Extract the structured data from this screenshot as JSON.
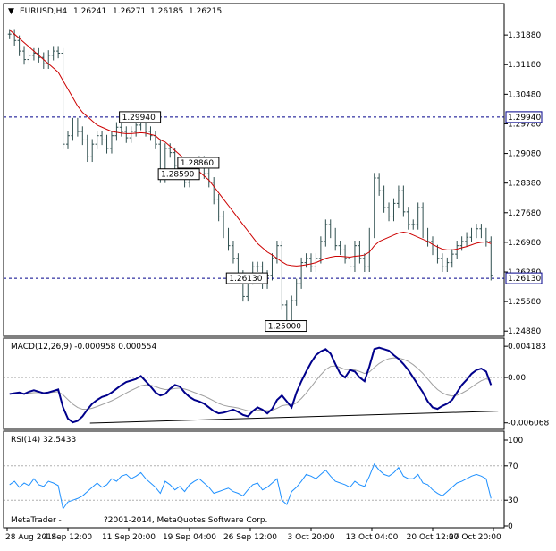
{
  "header": {
    "symbol": "EURUSD,H4",
    "open": "1.26241",
    "high": "1.26271",
    "low": "1.26185",
    "close": "1.26215"
  },
  "chart_data": [
    {
      "type": "candlestick",
      "symbol": "EURUSD",
      "timeframe": "H4",
      "ylim": [
        1.248,
        1.322
      ],
      "y_ticks": [
        "1.31880",
        "1.31180",
        "1.30480",
        "1.29780",
        "1.29080",
        "1.28380",
        "1.27680",
        "1.26980",
        "1.26280",
        "1.25580",
        "1.24880"
      ],
      "x_ticks": [
        "28 Aug 2014",
        "4 Sep 12:00",
        "11 Sep 20:00",
        "19 Sep 04:00",
        "26 Sep 12:00",
        "3 Oct 20:00",
        "13 Oct 04:00",
        "20 Oct 12:00",
        "27 Oct 20:00"
      ],
      "annotations": [
        {
          "label": "1.29940",
          "value": 1.2994
        },
        {
          "label": "1.28590",
          "value": 1.2859
        },
        {
          "label": "1.28860",
          "value": 1.2886
        },
        {
          "label": "1.25000",
          "value": 1.25
        },
        {
          "label": "1.26130",
          "value": 1.2613
        }
      ],
      "hlines": [
        {
          "value": 1.2994,
          "label": "1.29940",
          "style": "dashed",
          "color": "#00008b"
        },
        {
          "value": 1.2613,
          "label": "1.26130",
          "style": "dashed",
          "color": "#00008b"
        }
      ],
      "current_price": "1.26215",
      "close": [
        1.319,
        1.3175,
        1.315,
        1.313,
        1.314,
        1.3145,
        1.3135,
        1.312,
        1.314,
        1.315,
        1.3145,
        1.293,
        1.295,
        1.298,
        1.296,
        1.294,
        1.29,
        1.293,
        1.295,
        1.294,
        1.292,
        1.295,
        1.297,
        1.296,
        1.2945,
        1.296,
        1.2975,
        1.2985,
        1.296,
        1.295,
        1.293,
        1.285,
        1.292,
        1.291,
        1.288,
        1.286,
        1.284,
        1.286,
        1.288,
        1.289,
        1.286,
        1.284,
        1.28,
        1.276,
        1.272,
        1.269,
        1.266,
        1.262,
        1.257,
        1.261,
        1.264,
        1.264,
        1.26,
        1.262,
        1.266,
        1.269,
        1.255,
        1.251,
        1.256,
        1.26,
        1.265,
        1.266,
        1.264,
        1.266,
        1.27,
        1.274,
        1.272,
        1.269,
        1.268,
        1.266,
        1.264,
        1.269,
        1.266,
        1.264,
        1.272,
        1.285,
        1.282,
        1.278,
        1.276,
        1.279,
        1.282,
        1.277,
        1.274,
        1.274,
        1.278,
        1.272,
        1.27,
        1.268,
        1.266,
        1.264,
        1.265,
        1.267,
        1.269,
        1.27,
        1.271,
        1.272,
        1.273,
        1.272,
        1.27,
        1.262
      ],
      "moving_average_close": [
        1.32,
        1.319,
        1.318,
        1.317,
        1.316,
        1.315,
        1.314,
        1.313,
        1.312,
        1.311,
        1.31,
        1.308,
        1.306,
        1.304,
        1.302,
        1.3005,
        1.2995,
        1.2985,
        1.2975,
        1.297,
        1.2965,
        1.296,
        1.2958,
        1.2956,
        1.2955,
        1.2955,
        1.2956,
        1.2957,
        1.2956,
        1.2953,
        1.295,
        1.294,
        1.2935,
        1.2925,
        1.2915,
        1.2905,
        1.2895,
        1.2885,
        1.2875,
        1.2865,
        1.2855,
        1.2845,
        1.283,
        1.2815,
        1.28,
        1.2785,
        1.277,
        1.2755,
        1.274,
        1.2725,
        1.271,
        1.2695,
        1.2685,
        1.2675,
        1.2668,
        1.266,
        1.2652,
        1.2645,
        1.2643,
        1.2642,
        1.2643,
        1.2645,
        1.2647,
        1.265,
        1.2655,
        1.266,
        1.2663,
        1.2665,
        1.2665,
        1.2664,
        1.2663,
        1.2665,
        1.2666,
        1.2668,
        1.2675,
        1.269,
        1.27,
        1.2705,
        1.271,
        1.2715,
        1.272,
        1.2722,
        1.272,
        1.2715,
        1.271,
        1.2705,
        1.27,
        1.2693,
        1.2687,
        1.2682,
        1.268,
        1.268,
        1.2682,
        1.2685,
        1.2688,
        1.2692,
        1.2696,
        1.2698,
        1.2699,
        1.2695
      ]
    },
    {
      "type": "line",
      "name": "MACD(12,26,9) -0.000958 0.000554",
      "ylim": [
        -0.0067,
        0.0048
      ],
      "y_ticks": [
        "0.004183",
        "0.00",
        "-0.006068"
      ],
      "macd": [
        -0.0022,
        -0.0021,
        -0.002,
        -0.0022,
        -0.0019,
        -0.0017,
        -0.0019,
        -0.0021,
        -0.002,
        -0.0018,
        -0.0016,
        -0.004,
        -0.0055,
        -0.006,
        -0.0058,
        -0.0052,
        -0.0043,
        -0.0035,
        -0.003,
        -0.0026,
        -0.0024,
        -0.002,
        -0.0015,
        -0.001,
        -0.0006,
        -0.0004,
        -0.0002,
        0.0002,
        -0.0005,
        -0.0012,
        -0.002,
        -0.0024,
        -0.0022,
        -0.0015,
        -0.001,
        -0.0012,
        -0.002,
        -0.0026,
        -0.003,
        -0.0032,
        -0.0035,
        -0.004,
        -0.0045,
        -0.0048,
        -0.0047,
        -0.0045,
        -0.0043,
        -0.0046,
        -0.005,
        -0.0052,
        -0.0045,
        -0.004,
        -0.0043,
        -0.0048,
        -0.0042,
        -0.003,
        -0.0024,
        -0.0032,
        -0.004,
        -0.002,
        -0.0005,
        0.0008,
        0.002,
        0.003,
        0.0035,
        0.0038,
        0.0032,
        0.0018,
        0.0005,
        0.0,
        0.001,
        0.0008,
        0.0,
        -0.0005,
        0.0015,
        0.0038,
        0.004,
        0.0038,
        0.0036,
        0.003,
        0.0025,
        0.0018,
        0.001,
        0.0,
        -0.001,
        -0.002,
        -0.0032,
        -0.004,
        -0.0042,
        -0.0038,
        -0.0035,
        -0.003,
        -0.002,
        -0.001,
        -0.0003,
        0.0005,
        0.001,
        0.0012,
        0.0008,
        -0.001
      ],
      "signal_trend": [
        [
          0,
          -0.0061
        ],
        [
          99,
          -0.0045
        ]
      ]
    },
    {
      "type": "line",
      "name": "RSI(14) 32.5433",
      "ylim": [
        0,
        100
      ],
      "y_ticks": [
        "100",
        "70",
        "30",
        "0"
      ],
      "levels": [
        70,
        30
      ],
      "values": [
        48,
        52,
        45,
        50,
        47,
        55,
        48,
        46,
        52,
        50,
        47,
        20,
        28,
        30,
        32,
        35,
        40,
        45,
        50,
        45,
        48,
        55,
        52,
        58,
        60,
        55,
        58,
        62,
        55,
        50,
        45,
        38,
        52,
        48,
        42,
        46,
        40,
        48,
        52,
        55,
        50,
        45,
        38,
        40,
        42,
        44,
        40,
        38,
        35,
        42,
        48,
        50,
        42,
        45,
        50,
        55,
        30,
        25,
        40,
        45,
        52,
        60,
        58,
        55,
        60,
        65,
        58,
        52,
        50,
        48,
        45,
        52,
        48,
        46,
        58,
        72,
        65,
        60,
        58,
        62,
        68,
        58,
        55,
        55,
        60,
        50,
        48,
        42,
        38,
        35,
        40,
        45,
        50,
        52,
        55,
        58,
        60,
        58,
        55,
        32
      ]
    }
  ],
  "footer": {
    "brand": "MetaTrader -",
    "copyright": "?2001-2014, MetaQuotes Software Corp."
  },
  "colors": {
    "background": "#ffffff",
    "price_bar": "#2f4f4f",
    "moving_average": "#cc0000",
    "level_line": "#00008b",
    "macd_line": "#00008b",
    "macd_signal": "#a0a0a0",
    "rsi_line": "#1e90ff"
  }
}
